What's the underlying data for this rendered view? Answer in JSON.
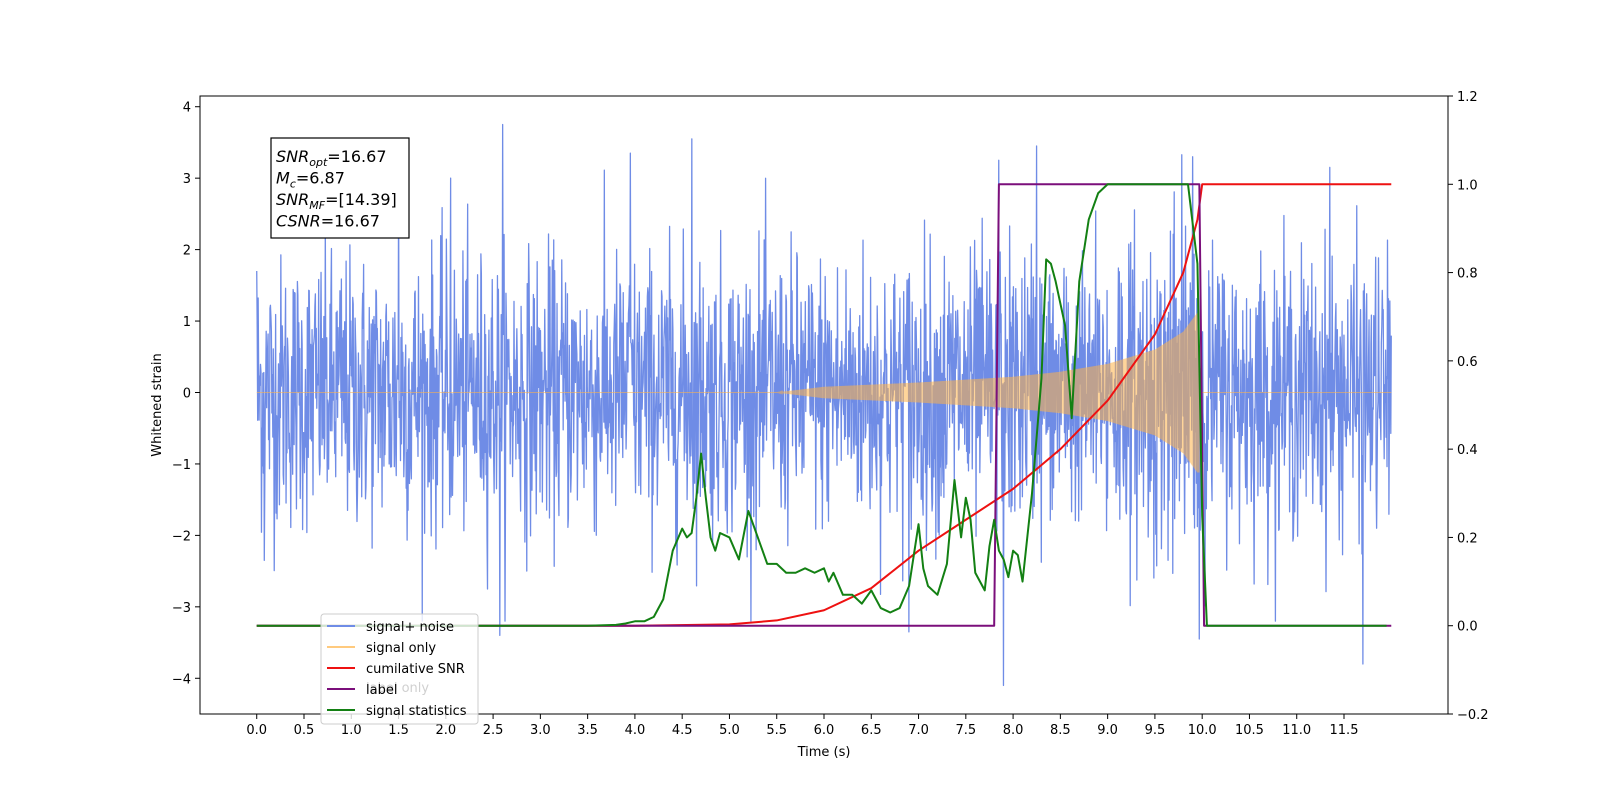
{
  "chart_data": {
    "type": "line",
    "xlabel": "Time (s)",
    "ylabel": "Whitened strain",
    "x_range": [
      -0.6,
      12.6
    ],
    "y_left_range": [
      -4.5,
      4.15
    ],
    "y_right_range": [
      -0.2,
      1.2
    ],
    "x_ticks": [
      0.0,
      0.5,
      1.0,
      1.5,
      2.0,
      2.5,
      3.0,
      3.5,
      4.0,
      4.5,
      5.0,
      5.5,
      6.0,
      6.5,
      7.0,
      7.5,
      8.0,
      8.5,
      9.0,
      9.5,
      10.0,
      10.5,
      11.0,
      11.5
    ],
    "x_tick_labels": [
      "0.0",
      "0.5",
      "1.0",
      "1.5",
      "2.0",
      "2.5",
      "3.0",
      "3.5",
      "4.0",
      "4.5",
      "5.0",
      "5.5",
      "6.0",
      "6.5",
      "7.0",
      "7.5",
      "8.0",
      "8.5",
      "9.0",
      "9.5",
      "10.0",
      "10.5",
      "11.0",
      "11.5"
    ],
    "y_left_ticks": [
      -4,
      -3,
      -2,
      -1,
      0,
      1,
      2,
      3,
      4
    ],
    "y_left_tick_labels": [
      "−4",
      "−3",
      "−2",
      "−1",
      "0",
      "1",
      "2",
      "3",
      "4"
    ],
    "y_right_ticks": [
      -0.2,
      0.0,
      0.2,
      0.4,
      0.6,
      0.8,
      1.0,
      1.2
    ],
    "y_right_tick_labels": [
      "−0.2",
      "0.0",
      "0.2",
      "0.4",
      "0.6",
      "0.8",
      "1.0",
      "1.2"
    ],
    "grid": false,
    "legend_placement": "lower-left",
    "series": [
      {
        "name": "signal+ noise",
        "axis": "left",
        "color": "#6f8ce6",
        "kind": "noise",
        "x_span": [
          0.0,
          12.0
        ],
        "sample_count": 2400,
        "noise_sigma": 0.95,
        "envelope_peaks": [
          {
            "x": 0.0,
            "y": 1.7
          },
          {
            "x": 0.08,
            "y": -2.35
          },
          {
            "x": 1.5,
            "y": 2.95
          },
          {
            "x": 2.05,
            "y": 3.0
          },
          {
            "x": 2.6,
            "y": 3.75
          },
          {
            "x": 2.57,
            "y": -3.4
          },
          {
            "x": 3.95,
            "y": 3.35
          },
          {
            "x": 4.6,
            "y": 3.55
          },
          {
            "x": 6.9,
            "y": -3.35
          },
          {
            "x": 7.85,
            "y": 3.25
          },
          {
            "x": 8.25,
            "y": 3.45
          },
          {
            "x": 7.9,
            "y": -4.1
          },
          {
            "x": 9.9,
            "y": 3.3
          },
          {
            "x": 9.97,
            "y": -3.45
          },
          {
            "x": 11.35,
            "y": 3.15
          },
          {
            "x": 11.7,
            "y": -3.8
          }
        ]
      },
      {
        "name": "signal only",
        "axis": "left",
        "color": "#ffb347",
        "kind": "chirp",
        "x_span": [
          0.0,
          12.0
        ],
        "chirp_start": 5.5,
        "chirp_end": 9.97,
        "amplitude_points": [
          {
            "x": 5.5,
            "y": 0.0
          },
          {
            "x": 6.0,
            "y": 0.08
          },
          {
            "x": 7.0,
            "y": 0.14
          },
          {
            "x": 8.0,
            "y": 0.22
          },
          {
            "x": 8.5,
            "y": 0.29
          },
          {
            "x": 9.0,
            "y": 0.4
          },
          {
            "x": 9.5,
            "y": 0.6
          },
          {
            "x": 9.8,
            "y": 0.85
          },
          {
            "x": 9.95,
            "y": 1.12
          }
        ]
      },
      {
        "name": "cumilative SNR",
        "axis": "right",
        "color": "#ee1111",
        "x": [
          0.0,
          4.0,
          5.0,
          5.5,
          6.0,
          6.5,
          7.0,
          7.5,
          8.0,
          8.5,
          9.0,
          9.5,
          9.8,
          9.95,
          10.0,
          12.0
        ],
        "y": [
          0.0,
          0.0,
          0.003,
          0.012,
          0.035,
          0.085,
          0.17,
          0.24,
          0.31,
          0.4,
          0.51,
          0.66,
          0.8,
          0.92,
          1.0,
          1.0
        ]
      },
      {
        "name": "label",
        "axis": "right",
        "color": "#7b0f7b",
        "x": [
          0.0,
          7.8,
          7.85,
          9.97,
          10.02,
          12.0
        ],
        "y": [
          0.0,
          0.0,
          1.0,
          1.0,
          0.0,
          0.0
        ]
      },
      {
        "name": "signal statistics",
        "axis": "right",
        "color": "#138013",
        "x": [
          0.0,
          3.0,
          3.5,
          3.8,
          3.9,
          4.0,
          4.1,
          4.2,
          4.3,
          4.4,
          4.5,
          4.55,
          4.6,
          4.65,
          4.7,
          4.75,
          4.8,
          4.85,
          4.9,
          5.0,
          5.1,
          5.2,
          5.3,
          5.4,
          5.5,
          5.6,
          5.7,
          5.8,
          5.9,
          6.0,
          6.05,
          6.1,
          6.2,
          6.3,
          6.4,
          6.5,
          6.6,
          6.7,
          6.8,
          6.9,
          7.0,
          7.05,
          7.1,
          7.2,
          7.3,
          7.38,
          7.45,
          7.5,
          7.55,
          7.6,
          7.7,
          7.75,
          7.8,
          7.85,
          7.9,
          7.95,
          8.0,
          8.05,
          8.1,
          8.2,
          8.3,
          8.35,
          8.4,
          8.45,
          8.55,
          8.62,
          8.7,
          8.8,
          8.9,
          9.0,
          9.1,
          9.3,
          9.5,
          9.7,
          9.85,
          9.95,
          10.0,
          10.05,
          10.1,
          10.5,
          11.0,
          11.5,
          11.95
        ],
        "y": [
          0.0,
          0.0,
          0.0,
          0.002,
          0.005,
          0.01,
          0.01,
          0.02,
          0.06,
          0.17,
          0.22,
          0.2,
          0.21,
          0.29,
          0.39,
          0.29,
          0.2,
          0.17,
          0.21,
          0.2,
          0.15,
          0.26,
          0.2,
          0.14,
          0.14,
          0.12,
          0.12,
          0.13,
          0.12,
          0.13,
          0.1,
          0.12,
          0.07,
          0.07,
          0.05,
          0.08,
          0.04,
          0.03,
          0.04,
          0.09,
          0.23,
          0.13,
          0.09,
          0.07,
          0.14,
          0.33,
          0.2,
          0.29,
          0.24,
          0.12,
          0.08,
          0.18,
          0.24,
          0.17,
          0.15,
          0.11,
          0.17,
          0.16,
          0.1,
          0.3,
          0.56,
          0.83,
          0.82,
          0.78,
          0.68,
          0.47,
          0.78,
          0.92,
          0.98,
          1.0,
          1.0,
          1.0,
          1.0,
          1.0,
          1.0,
          0.82,
          0.25,
          0.0,
          0.0,
          0.0,
          0.0,
          0.0,
          0.0
        ]
      }
    ],
    "annotation_box": {
      "lines": [
        {
          "name": "SNR",
          "sub": "opt",
          "value": "=16.67"
        },
        {
          "name": "M",
          "sub": "c",
          "value": "=6.87"
        },
        {
          "name": "SNR",
          "sub": "MF",
          "value": "=[14.39]"
        },
        {
          "name": "CSNR",
          "sub": "",
          "value": "=16.67"
        }
      ]
    },
    "legend_overlap_text": "label only"
  }
}
